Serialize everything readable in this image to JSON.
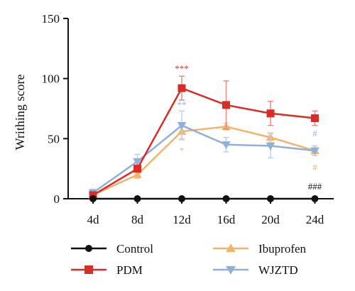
{
  "chart_data": {
    "type": "line",
    "title": "",
    "xlabel": "",
    "ylabel": "Writhing score",
    "categories": [
      "4d",
      "8d",
      "12d",
      "16d",
      "20d",
      "24d"
    ],
    "ylim": [
      0,
      150
    ],
    "yticks": [
      0,
      50,
      100,
      150
    ],
    "grid": false,
    "legend": {
      "position": "bottom",
      "columns": 2
    },
    "series": [
      {
        "name": "Control",
        "color": "#111111",
        "marker": "circle",
        "values": [
          0,
          0,
          0,
          0,
          0,
          0
        ],
        "errors": [
          0,
          0,
          0,
          0,
          0,
          0
        ]
      },
      {
        "name": "PDM",
        "color": "#d62d27",
        "marker": "square",
        "values": [
          3,
          25,
          92,
          78,
          71,
          67
        ],
        "errors": [
          2,
          3,
          10,
          20,
          10,
          6
        ]
      },
      {
        "name": "Ibuprofen",
        "color": "#f2b46b",
        "marker": "triangle-up",
        "values": [
          3,
          20,
          56,
          60,
          51,
          40
        ],
        "errors": [
          2,
          3,
          6,
          3,
          4,
          4
        ]
      },
      {
        "name": "WJZTD",
        "color": "#8fb0d8",
        "marker": "triangle-down",
        "values": [
          5,
          31,
          61,
          45,
          44,
          40
        ],
        "errors": [
          3,
          6,
          12,
          6,
          10,
          4
        ]
      }
    ],
    "annotations": [
      {
        "text": "***",
        "category": "12d",
        "y": 108,
        "color": "#d62d27"
      },
      {
        "text": "**",
        "category": "12d",
        "y": 78,
        "color": "#8fb0d8"
      },
      {
        "text": "*",
        "category": "12d",
        "y": 40,
        "color": "#f2b46b"
      },
      {
        "text": "#",
        "category": "24d",
        "y": 54,
        "color": "#8fb0d8"
      },
      {
        "text": "#",
        "category": "24d",
        "y": 26,
        "color": "#f2b46b"
      },
      {
        "text": "###",
        "category": "24d",
        "y": 10,
        "color": "#111111"
      }
    ]
  }
}
